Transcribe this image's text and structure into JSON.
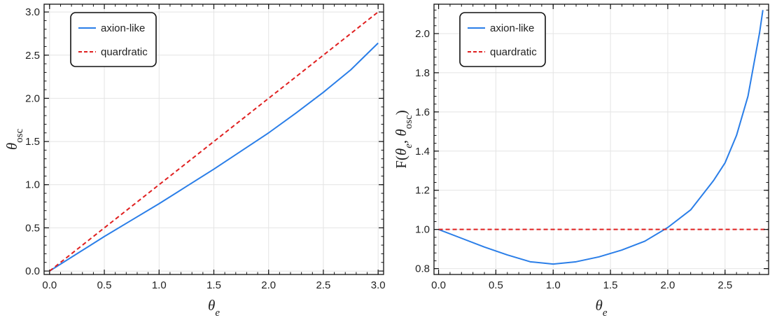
{
  "chart_data": [
    {
      "type": "line",
      "xlabel": "θe",
      "ylabel": "θosc",
      "xlim": [
        -0.05,
        3.05
      ],
      "ylim": [
        -0.04,
        3.09
      ],
      "xticks": [
        "0.0",
        "0.5",
        "1.0",
        "1.5",
        "2.0",
        "2.5",
        "3.0"
      ],
      "yticks": [
        "0.0",
        "0.5",
        "1.0",
        "1.5",
        "2.0",
        "2.5",
        "3.0"
      ],
      "grid": true,
      "legend_position": "top-left",
      "series": [
        {
          "name": "axion-like",
          "color": "#2a7ee8",
          "style": "solid",
          "x": [
            0.0,
            0.25,
            0.5,
            0.75,
            1.0,
            1.25,
            1.5,
            1.75,
            2.0,
            2.25,
            2.5,
            2.75,
            3.0
          ],
          "y": [
            0.0,
            0.2,
            0.4,
            0.59,
            0.78,
            0.98,
            1.18,
            1.39,
            1.6,
            1.83,
            2.07,
            2.33,
            2.64
          ]
        },
        {
          "name": "quardratic",
          "color": "#e02020",
          "style": "dashed",
          "x": [
            0.0,
            3.0
          ],
          "y": [
            0.0,
            3.0
          ]
        }
      ]
    },
    {
      "type": "line",
      "xlabel": "θe",
      "ylabel": "F(θe, θosc)",
      "xlim": [
        -0.04,
        2.88
      ],
      "ylim": [
        0.77,
        2.15
      ],
      "xticks": [
        "0.0",
        "0.5",
        "1.0",
        "1.5",
        "2.0",
        "2.5"
      ],
      "yticks": [
        "0.8",
        "1.0",
        "1.2",
        "1.4",
        "1.6",
        "1.8",
        "2.0"
      ],
      "grid": true,
      "legend_position": "top-left",
      "series": [
        {
          "name": "axion-like",
          "color": "#2a7ee8",
          "style": "solid",
          "x": [
            0.0,
            0.2,
            0.4,
            0.6,
            0.8,
            1.0,
            1.2,
            1.4,
            1.6,
            1.8,
            2.0,
            2.2,
            2.4,
            2.5,
            2.6,
            2.7,
            2.8,
            2.83
          ],
          "y": [
            1.0,
            0.955,
            0.91,
            0.87,
            0.835,
            0.823,
            0.835,
            0.86,
            0.895,
            0.94,
            1.01,
            1.1,
            1.25,
            1.34,
            1.48,
            1.68,
            2.0,
            2.12
          ]
        },
        {
          "name": "quardratic",
          "color": "#e02020",
          "style": "dashed",
          "x": [
            0.0,
            2.88
          ],
          "y": [
            1.0,
            1.0
          ]
        }
      ]
    }
  ]
}
